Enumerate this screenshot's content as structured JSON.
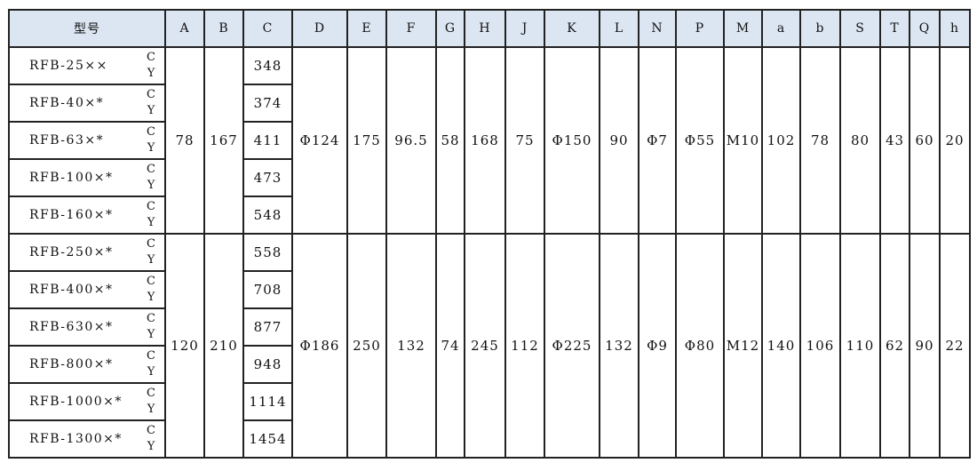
{
  "headers": [
    "型号",
    "A",
    "B",
    "C",
    "D",
    "E",
    "F",
    "G",
    "H",
    "J",
    "K",
    "L",
    "N",
    "P",
    "M",
    "a",
    "b",
    "S",
    "T",
    "Q",
    "h"
  ],
  "rows": [
    {
      "model": "RFB-25××",
      "c_label": "C",
      "y_label": "Y",
      "C": "348"
    },
    {
      "model": "RFB-40×*",
      "c_label": "C",
      "y_label": "Y",
      "C": "374"
    },
    {
      "model": "RFB-63×*",
      "c_label": "C",
      "y_label": "Y",
      "C": "411"
    },
    {
      "model": "RFB-100×*",
      "c_label": "C",
      "y_label": "Y",
      "C": "473"
    },
    {
      "model": "RFB-160×*",
      "c_label": "C",
      "y_label": "Y",
      "C": "548"
    },
    {
      "model": "RFB-250×*",
      "c_label": "C",
      "y_label": "Y",
      "C": "558"
    },
    {
      "model": "RFB-400×*",
      "c_label": "C",
      "y_label": "Y",
      "C": "708"
    },
    {
      "model": "RFB-630×*",
      "c_label": "C",
      "y_label": "Y",
      "C": "877"
    },
    {
      "model": "RFB-800×*",
      "c_label": "C",
      "y_label": "Y",
      "C": "948"
    },
    {
      "model": "RFB-1000×*",
      "c_label": "C",
      "y_label": "Y",
      "C": "1114"
    },
    {
      "model": "RFB-1300×*",
      "c_label": "C",
      "y_label": "Y",
      "C": "1454"
    }
  ],
  "groups": [
    {
      "A": "78",
      "B": "167",
      "D": "Φ124",
      "E": "175",
      "F": "96.5",
      "G": "58",
      "H": "168",
      "J": "75",
      "K": "Φ150",
      "L": "90",
      "N": "Φ7",
      "P": "Φ55",
      "M": "M10",
      "a": "102",
      "b": "78",
      "S": "80",
      "T": "43",
      "Q": "60",
      "h": "20"
    },
    {
      "A": "120",
      "B": "210",
      "D": "Φ186",
      "E": "250",
      "F": "132",
      "G": "74",
      "H": "245",
      "J": "112",
      "K": "Φ225",
      "L": "132",
      "N": "Φ9",
      "P": "Φ80",
      "M": "M12",
      "a": "140",
      "b": "106",
      "S": "110",
      "T": "62",
      "Q": "90",
      "h": "22"
    }
  ]
}
